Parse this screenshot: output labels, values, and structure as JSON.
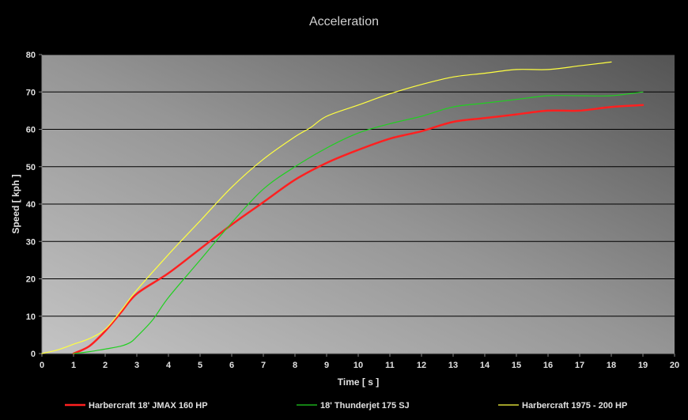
{
  "chart_data": {
    "type": "line",
    "title": "Acceleration",
    "xlabel": "Time [ s ]",
    "ylabel": "Speed  [ kph ]",
    "xlim": [
      0,
      20
    ],
    "ylim": [
      0,
      80
    ],
    "x_ticks": [
      "0",
      "1",
      "2",
      "3",
      "4",
      "5",
      "6",
      "7",
      "8",
      "9",
      "10",
      "11",
      "12",
      "13",
      "14",
      "15",
      "16",
      "17",
      "18",
      "19",
      "20"
    ],
    "y_ticks": [
      "0",
      "10",
      "20",
      "30",
      "40",
      "50",
      "60",
      "70",
      "80"
    ],
    "grid": "horizontal",
    "legend": "bottom",
    "series": [
      {
        "name": "Harbercraft 18' JMAX 160 HP",
        "color": "#ff2020",
        "points": [
          [
            1,
            0
          ],
          [
            1.5,
            2
          ],
          [
            2,
            6
          ],
          [
            2.5,
            11
          ],
          [
            3,
            16
          ],
          [
            4,
            21.5
          ],
          [
            5,
            28
          ],
          [
            6,
            34.5
          ],
          [
            7,
            40.5
          ],
          [
            8,
            46.5
          ],
          [
            9,
            51
          ],
          [
            10,
            54.5
          ],
          [
            11,
            57.5
          ],
          [
            12,
            59.5
          ],
          [
            13,
            62
          ],
          [
            14,
            63
          ],
          [
            15,
            64
          ],
          [
            16,
            65
          ],
          [
            17,
            65
          ],
          [
            18,
            66
          ],
          [
            19,
            66.5
          ]
        ]
      },
      {
        "name": "18' Thunderjet 175 SJ",
        "color": "#20d020",
        "points": [
          [
            1,
            0
          ],
          [
            1.5,
            0.5
          ],
          [
            2,
            1.2
          ],
          [
            2.5,
            2
          ],
          [
            2.8,
            3
          ],
          [
            3,
            4.5
          ],
          [
            3.5,
            9
          ],
          [
            4,
            15
          ],
          [
            5,
            25
          ],
          [
            6,
            35
          ],
          [
            7,
            44
          ],
          [
            8,
            50
          ],
          [
            9,
            55
          ],
          [
            10,
            59
          ],
          [
            11,
            61.5
          ],
          [
            12,
            63.5
          ],
          [
            13,
            66
          ],
          [
            14,
            67
          ],
          [
            15,
            68
          ],
          [
            16,
            69
          ],
          [
            17,
            69
          ],
          [
            18,
            69
          ],
          [
            19,
            70
          ]
        ]
      },
      {
        "name": "Harbercraft 1975 - 200 HP",
        "color": "#ffff40",
        "points": [
          [
            0,
            0
          ],
          [
            0.5,
            1
          ],
          [
            1,
            2.5
          ],
          [
            1.5,
            4
          ],
          [
            2,
            6.5
          ],
          [
            2.5,
            11.5
          ],
          [
            3,
            17
          ],
          [
            4,
            26.5
          ],
          [
            5,
            35.5
          ],
          [
            6,
            44.5
          ],
          [
            7,
            52
          ],
          [
            8,
            58
          ],
          [
            8.5,
            60.5
          ],
          [
            9,
            63.5
          ],
          [
            10,
            66.5
          ],
          [
            11,
            69.5
          ],
          [
            12,
            72
          ],
          [
            13,
            74
          ],
          [
            14,
            75
          ],
          [
            15,
            76
          ],
          [
            16,
            76
          ],
          [
            17,
            77
          ],
          [
            18,
            78
          ]
        ]
      }
    ]
  }
}
